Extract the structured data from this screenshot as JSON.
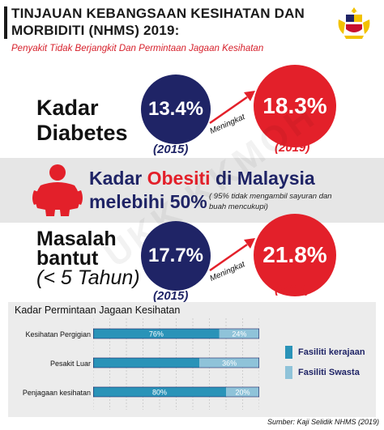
{
  "header": {
    "title": "TINJAUAN KEBANGSAAN KESIHATAN DAN MORBIDITI (NHMS) 2019:",
    "subtitle": "Penyakit Tidak Berjangkit Dan Permintaan Jagaan Kesihatan"
  },
  "diabetes": {
    "label_line1": "Kadar",
    "label_line2": "Diabetes",
    "value_2015": "13.4%",
    "year_2015": "(2015)",
    "arrow_label": "Meningkat",
    "value_2019": "18.3%",
    "year_2019": "(2019)"
  },
  "obesity": {
    "line1_prefix": "Kadar",
    "line1_highlight": "Obesiti",
    "line1_suffix": "di Malaysia",
    "line2": "melebihi 50%",
    "note": "( 95% tidak mengambil sayuran dan buah mencukupi)"
  },
  "stunting": {
    "label_line1": "Masalah",
    "label_line2": "bantut",
    "label_line3": "(< 5 Tahun)",
    "value_2015": "17.7%",
    "year_2015": "(2015)",
    "arrow_label": "Meningkat",
    "value_2019": "21.8%",
    "year_2019": "(2019)"
  },
  "watermark": "UKK KKMOH",
  "chart_data": {
    "type": "bar",
    "stacked": true,
    "orientation": "horizontal",
    "title": "Kadar Permintaan Jagaan Kesihatan",
    "categories": [
      "Kesihatan Pergigian",
      "Pesakit Luar",
      "Penjagaan kesihatan"
    ],
    "series": [
      {
        "name": "Fasiliti kerajaan",
        "values": [
          76,
          64,
          80
        ],
        "labels": [
          "76%",
          "",
          "80%"
        ],
        "color": "#2a93b8"
      },
      {
        "name": "Fasiliti Swasta",
        "values": [
          24,
          36,
          20
        ],
        "labels": [
          "24%",
          "36%",
          "20%"
        ],
        "color": "#8fc3d9"
      }
    ],
    "xlim": [
      0,
      100
    ],
    "colors": {
      "navy": "#1f2466",
      "red": "#e3202a",
      "grid": "#b9b9b9"
    }
  },
  "source": "Sumber: Kaji Selidik NHMS (2019)"
}
